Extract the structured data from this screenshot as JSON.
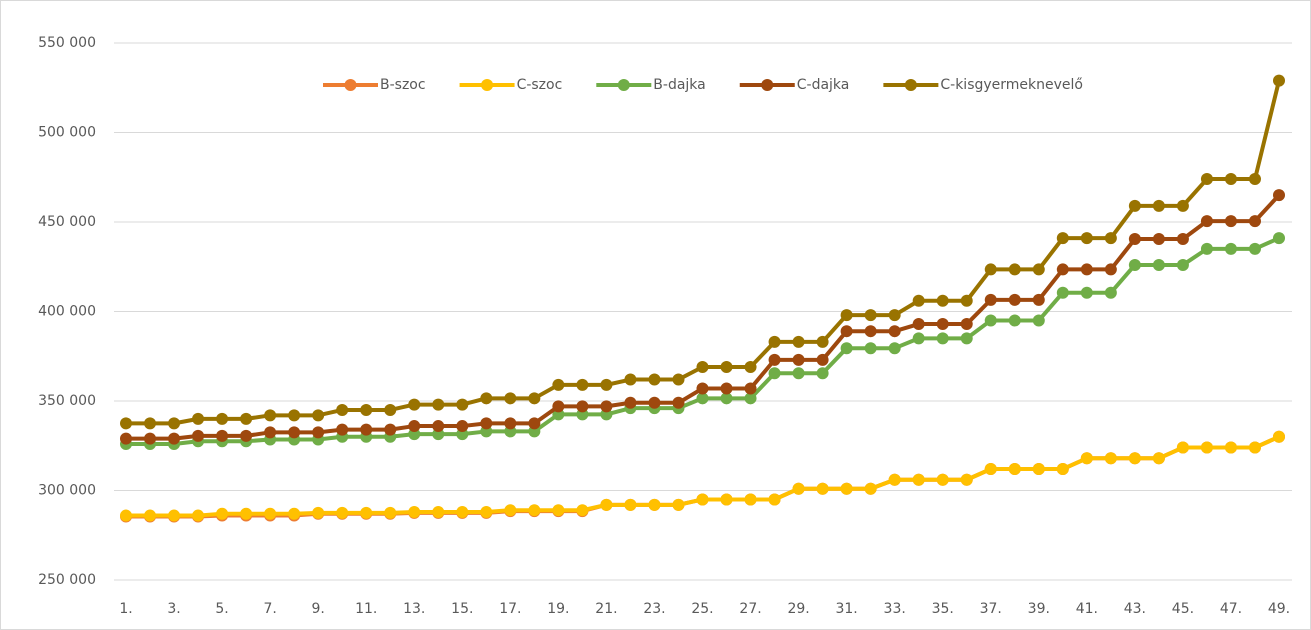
{
  "chart_data": {
    "type": "line",
    "categories": [
      "1.",
      null,
      "3.",
      null,
      "5.",
      null,
      "7.",
      null,
      "9.",
      null,
      "11.",
      null,
      "13.",
      null,
      "15.",
      null,
      "17.",
      null,
      "19.",
      null,
      "21.",
      null,
      "23.",
      null,
      "25.",
      null,
      "27.",
      null,
      "29.",
      null,
      "31.",
      null,
      "33.",
      null,
      "35.",
      null,
      "37.",
      null,
      "39.",
      null,
      "41.",
      null,
      "43.",
      null,
      "45.",
      null,
      "47.",
      null,
      "49."
    ],
    "series": [
      {
        "name": "B-szoc",
        "color": "#ed7d31",
        "values": [
          285500,
          285500,
          285500,
          285500,
          286000,
          286000,
          286000,
          286000,
          287000,
          287000,
          287000,
          287000,
          287500,
          287500,
          287500,
          287500,
          288500,
          288500,
          288500,
          288500,
          292000,
          292000,
          292000,
          292000,
          295000,
          295000,
          295000,
          295000,
          301000,
          301000,
          301000,
          301000,
          306000,
          306000,
          306000,
          306000,
          312000,
          312000,
          312000,
          312000,
          318000,
          318000,
          318000,
          318000,
          324000,
          324000,
          324000,
          324000,
          330000
        ]
      },
      {
        "name": "C-szoc",
        "color": "#ffc000",
        "values": [
          286000,
          286000,
          286000,
          286000,
          287000,
          287000,
          287000,
          287000,
          287500,
          287500,
          287500,
          287500,
          288000,
          288000,
          288000,
          288000,
          289000,
          289000,
          289000,
          289000,
          292000,
          292000,
          292000,
          292000,
          295000,
          295000,
          295000,
          295000,
          301000,
          301000,
          301000,
          301000,
          306000,
          306000,
          306000,
          306000,
          312000,
          312000,
          312000,
          312000,
          318000,
          318000,
          318000,
          318000,
          324000,
          324000,
          324000,
          324000,
          330000
        ]
      },
      {
        "name": "B-dajka",
        "color": "#70ad47",
        "values": [
          326000,
          326000,
          326000,
          327500,
          327500,
          327500,
          328500,
          328500,
          328500,
          330000,
          330000,
          330000,
          331500,
          331500,
          331500,
          333000,
          333000,
          333000,
          342500,
          342500,
          342500,
          346000,
          346000,
          346000,
          351500,
          351500,
          351500,
          365500,
          365500,
          365500,
          379500,
          379500,
          379500,
          385000,
          385000,
          385000,
          395000,
          395000,
          395000,
          410500,
          410500,
          410500,
          426000,
          426000,
          426000,
          435000,
          435000,
          435000,
          441000
        ]
      },
      {
        "name": "C-dajka",
        "color": "#9e480e",
        "values": [
          329000,
          329000,
          329000,
          330500,
          330500,
          330500,
          332500,
          332500,
          332500,
          334000,
          334000,
          334000,
          336000,
          336000,
          336000,
          337500,
          337500,
          337500,
          347000,
          347000,
          347000,
          349000,
          349000,
          349000,
          357000,
          357000,
          357000,
          373000,
          373000,
          373000,
          389000,
          389000,
          389000,
          393000,
          393000,
          393000,
          406500,
          406500,
          406500,
          423500,
          423500,
          423500,
          440500,
          440500,
          440500,
          450500,
          450500,
          450500,
          465000
        ]
      },
      {
        "name": "C-kisgyermeknevelő",
        "color": "#997300",
        "values": [
          337500,
          337500,
          337500,
          340000,
          340000,
          340000,
          342000,
          342000,
          342000,
          345000,
          345000,
          345000,
          348000,
          348000,
          348000,
          351500,
          351500,
          351500,
          359000,
          359000,
          359000,
          362000,
          362000,
          362000,
          369000,
          369000,
          369000,
          383000,
          383000,
          383000,
          398000,
          398000,
          398000,
          406000,
          406000,
          406000,
          423500,
          423500,
          423500,
          441000,
          441000,
          441000,
          459000,
          459000,
          459000,
          474000,
          474000,
          474000,
          529000
        ]
      }
    ],
    "ylim": [
      250000,
      550000
    ],
    "yticks": [
      {
        "value": 250000,
        "label": "250 000"
      },
      {
        "value": 300000,
        "label": "300 000"
      },
      {
        "value": 350000,
        "label": "350 000"
      },
      {
        "value": 400000,
        "label": "400 000"
      },
      {
        "value": 450000,
        "label": "450 000"
      },
      {
        "value": 500000,
        "label": "500 000"
      },
      {
        "value": 550000,
        "label": "550 000"
      }
    ],
    "grid": true,
    "legend": "top"
  }
}
